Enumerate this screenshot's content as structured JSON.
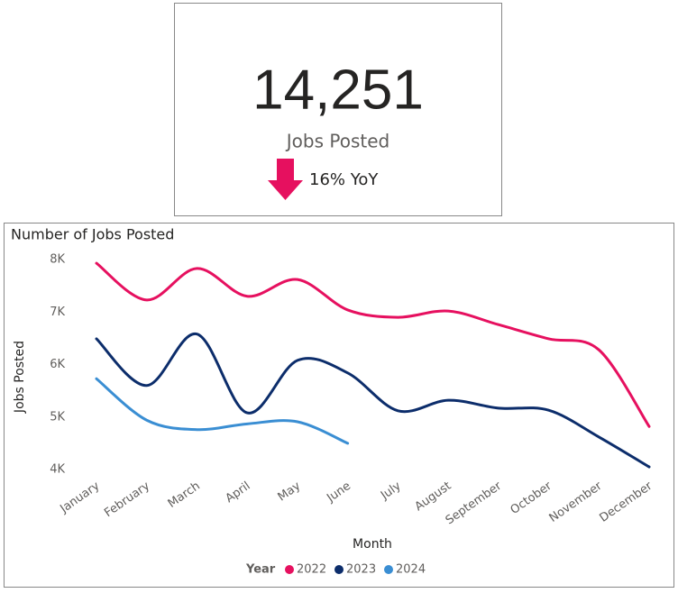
{
  "kpi": {
    "value": "14,251",
    "label": "Jobs Posted",
    "change": "16% YoY"
  },
  "chart_data": {
    "type": "line",
    "title": "Number of Jobs Posted",
    "x_label": "Month",
    "y_label": "Jobs Posted",
    "legend_title": "Year",
    "legend_position": "bottom",
    "grid": false,
    "categories": [
      "January",
      "February",
      "March",
      "April",
      "May",
      "June",
      "July",
      "August",
      "September",
      "October",
      "November",
      "December"
    ],
    "series": [
      {
        "name": "2022",
        "color": "#e6105f",
        "values": [
          7930,
          7230,
          7830,
          7300,
          7620,
          7040,
          6900,
          7020,
          6760,
          6490,
          6280,
          4820
        ]
      },
      {
        "name": "2023",
        "color": "#0c2d6b",
        "values": [
          6490,
          5600,
          6580,
          5080,
          6080,
          5840,
          5120,
          5320,
          5170,
          5130,
          4620,
          4050
        ]
      },
      {
        "name": "2024",
        "color": "#3a8ed3",
        "values": [
          5730,
          4940,
          4760,
          4870,
          4910,
          4500,
          null,
          null,
          null,
          null,
          null,
          null
        ]
      }
    ],
    "ylim": [
      4000,
      8000
    ],
    "yticks": [
      {
        "value": 4000,
        "label": "4K"
      },
      {
        "value": 5000,
        "label": "5K"
      },
      {
        "value": 6000,
        "label": "6K"
      },
      {
        "value": 7000,
        "label": "7K"
      },
      {
        "value": 8000,
        "label": "8K"
      }
    ]
  }
}
